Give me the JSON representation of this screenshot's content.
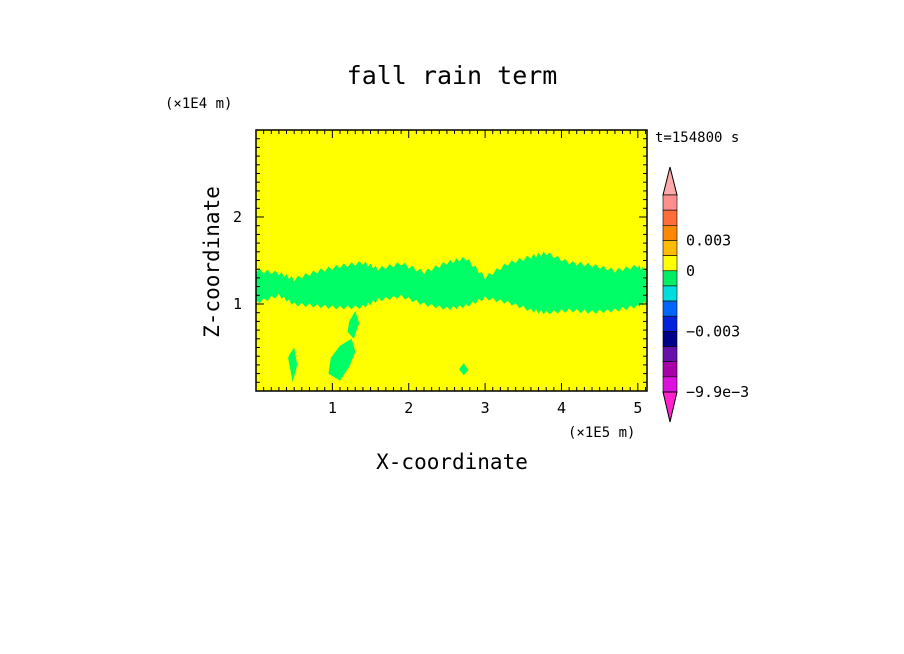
{
  "chart_data": {
    "type": "heatmap",
    "title": "fall rain term",
    "xlabel": "X-coordinate",
    "ylabel": "Z-coordinate",
    "x_unit": "(×1E5 m)",
    "y_unit": "(×1E4 m)",
    "time_label": "t=154800 s",
    "xlim": [
      0,
      5.12
    ],
    "ylim": [
      0,
      3.0
    ],
    "xticks": [
      {
        "value": 1,
        "label": "1"
      },
      {
        "value": 2,
        "label": "2"
      },
      {
        "value": 3,
        "label": "3"
      },
      {
        "value": 4,
        "label": "4"
      },
      {
        "value": 5,
        "label": "5"
      }
    ],
    "yticks": [
      {
        "value": 1,
        "label": "1"
      },
      {
        "value": 2,
        "label": "2"
      }
    ],
    "background_color": "#ffff00",
    "field_color": "#00ff66",
    "band": {
      "x": [
        0.0,
        0.3,
        0.5,
        0.8,
        1.1,
        1.4,
        1.6,
        1.9,
        2.2,
        2.5,
        2.75,
        3.0,
        3.3,
        3.6,
        3.8,
        4.1,
        4.4,
        4.7,
        5.0,
        5.12
      ],
      "top": [
        1.38,
        1.35,
        1.28,
        1.37,
        1.43,
        1.47,
        1.4,
        1.46,
        1.36,
        1.47,
        1.52,
        1.3,
        1.46,
        1.54,
        1.58,
        1.47,
        1.44,
        1.38,
        1.43,
        1.37
      ],
      "bottom": [
        1.02,
        1.1,
        1.0,
        0.98,
        0.96,
        0.97,
        1.05,
        1.09,
        1.0,
        0.95,
        0.98,
        1.07,
        1.02,
        0.93,
        0.9,
        0.93,
        0.91,
        0.93,
        0.98,
        1.03
      ]
    },
    "patches": [
      {
        "x": [
          0.42,
          0.48,
          0.54,
          0.5,
          0.44
        ],
        "y": [
          0.38,
          0.1,
          0.3,
          0.5,
          0.42
        ]
      },
      {
        "x": [
          0.95,
          1.1,
          1.22,
          1.3,
          1.25,
          1.1,
          0.98
        ],
        "y": [
          0.2,
          0.12,
          0.28,
          0.45,
          0.6,
          0.52,
          0.38
        ]
      },
      {
        "x": [
          1.2,
          1.28,
          1.35,
          1.3,
          1.22
        ],
        "y": [
          0.68,
          0.6,
          0.78,
          0.92,
          0.8
        ]
      },
      {
        "x": [
          2.66,
          2.72,
          2.78,
          2.72
        ],
        "y": [
          0.25,
          0.18,
          0.24,
          0.32
        ]
      }
    ],
    "colorbar": {
      "colors": [
        "#ff8f8f",
        "#ff6d38",
        "#ff8800",
        "#ffbb00",
        "#ffff00",
        "#00ee66",
        "#00dddd",
        "#0066ff",
        "#0022dd",
        "#000088",
        "#6611aa",
        "#aa00aa",
        "#dd11dd"
      ],
      "top_triangle_color": "#ffaaaa",
      "bottom_triangle_color": "#ff22cc",
      "labels": [
        {
          "text": "0.003",
          "level": 3
        },
        {
          "text": "0",
          "level": 5
        },
        {
          "text": "−0.003",
          "level": 9
        },
        {
          "text": "−9.9e−3",
          "level": 13
        }
      ]
    }
  }
}
